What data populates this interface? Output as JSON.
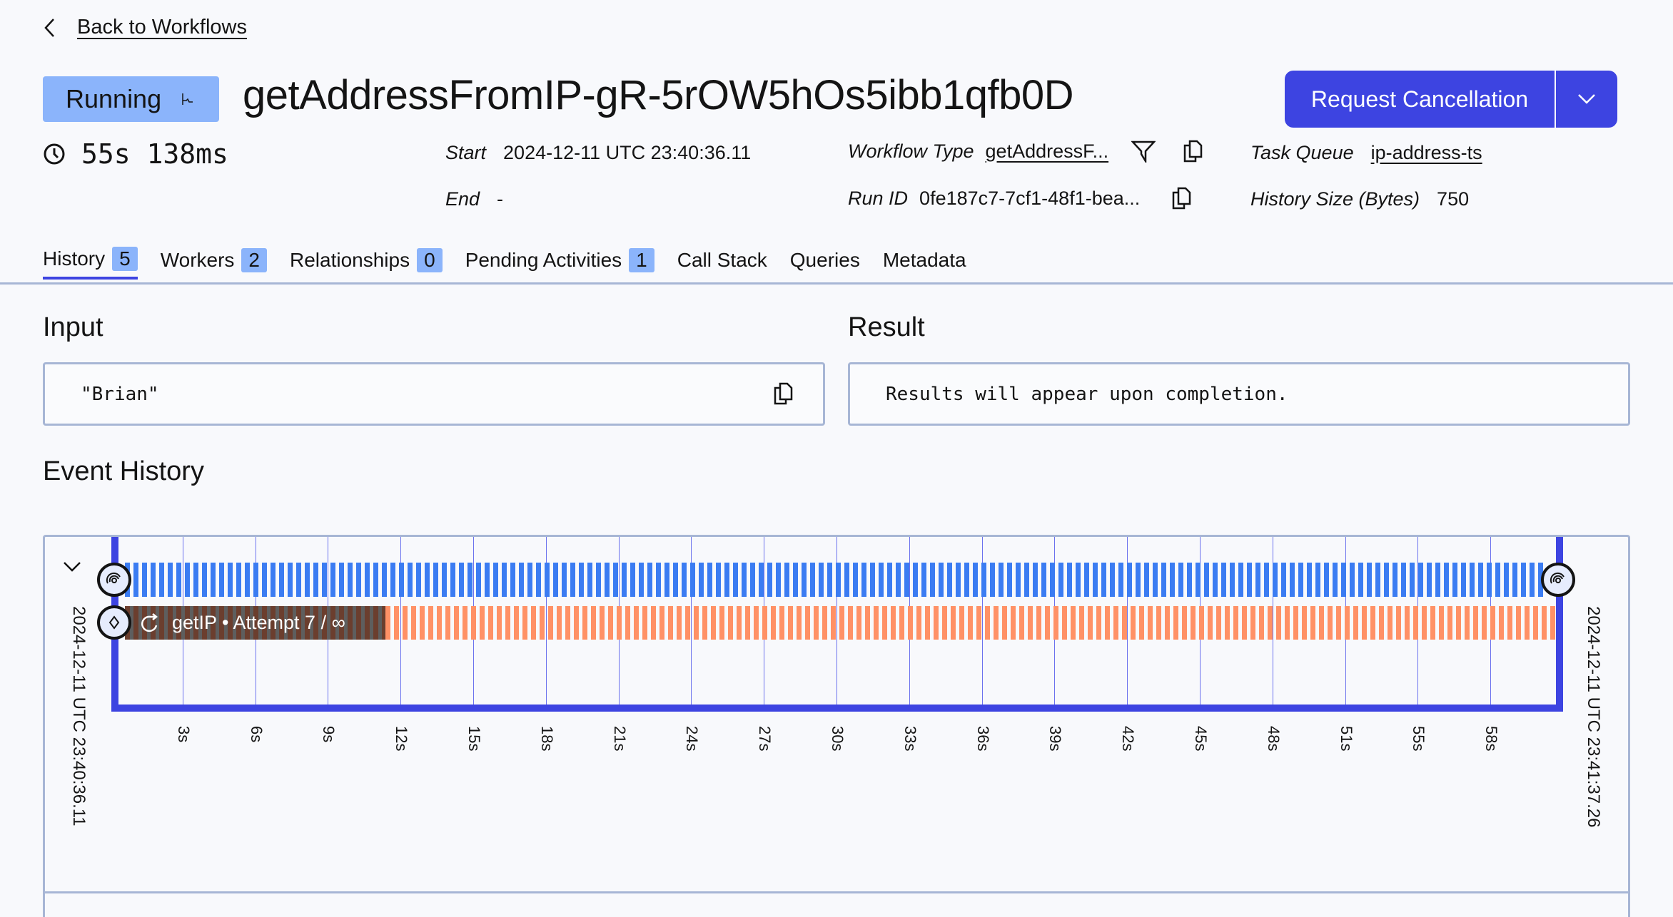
{
  "back_link": "Back to Workflows",
  "status": "Running",
  "workflow_id": "getAddressFromIP-gR-5rOW5hOs5ibb1qfb0D",
  "actions": {
    "primary": "Request Cancellation"
  },
  "duration": "55s 138ms",
  "details": {
    "start_label": "Start",
    "start_value": "2024-12-11 UTC 23:40:36.11",
    "end_label": "End",
    "end_value": "-",
    "type_label": "Workflow Type",
    "type_value": "getAddressF...",
    "run_label": "Run ID",
    "run_value": "0fe187c7-7cf1-48f1-bea...",
    "queue_label": "Task Queue",
    "queue_value": "ip-address-ts",
    "size_label": "History Size (Bytes)",
    "size_value": "750"
  },
  "tabs": [
    {
      "label": "History",
      "count": "5"
    },
    {
      "label": "Workers",
      "count": "2"
    },
    {
      "label": "Relationships",
      "count": "0"
    },
    {
      "label": "Pending Activities",
      "count": "1"
    },
    {
      "label": "Call Stack"
    },
    {
      "label": "Queries"
    },
    {
      "label": "Metadata"
    }
  ],
  "input": {
    "heading": "Input",
    "value": "\"Brian\""
  },
  "result": {
    "heading": "Result",
    "value": "Results will appear upon completion."
  },
  "event_history": {
    "heading": "Event History",
    "start_time": "2024-12-11 UTC 23:40:36.11",
    "end_time": "2024-12-11 UTC 23:41:37.26",
    "activity_label": "getIP • Attempt 7 / ∞",
    "ticks": [
      "3s",
      "6s",
      "9s",
      "12s",
      "15s",
      "18s",
      "21s",
      "24s",
      "27s",
      "30s",
      "33s",
      "36s",
      "39s",
      "42s",
      "45s",
      "48s",
      "51s",
      "55s",
      "58s"
    ],
    "colors": {
      "workflow": "#3b7cf2",
      "activity": "#ff9166",
      "axis": "#3d44e1"
    }
  }
}
